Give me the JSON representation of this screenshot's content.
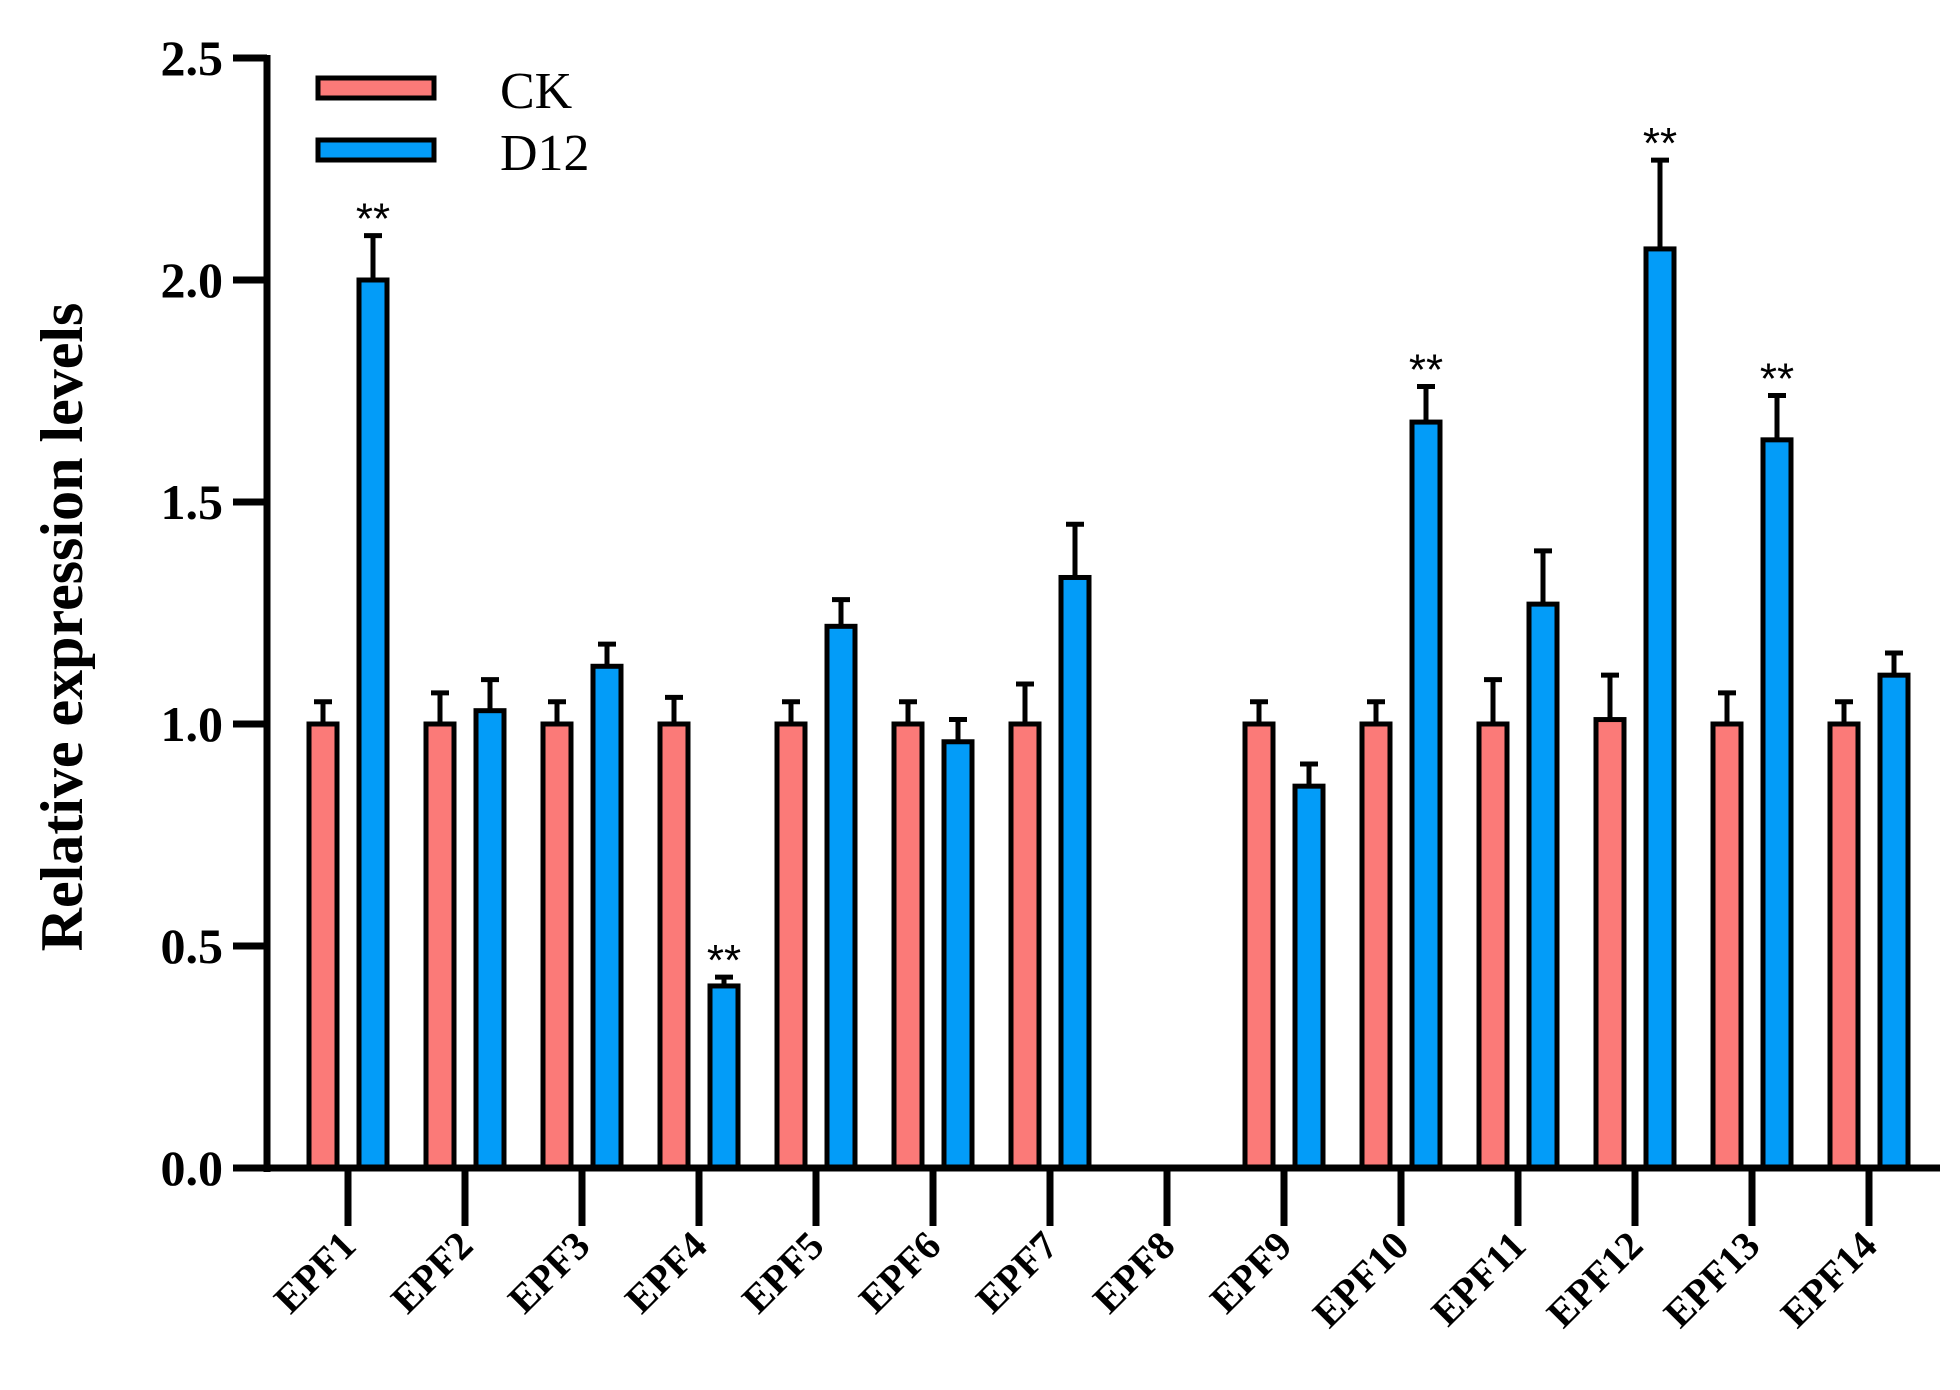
{
  "chart_data": {
    "type": "bar",
    "title": "",
    "xlabel": "",
    "ylabel": "Relative expression levels",
    "ylim": [
      0,
      2.5
    ],
    "yticks": [
      "0.0",
      "0.5",
      "1.0",
      "1.5",
      "2.0",
      "2.5"
    ],
    "grid": false,
    "legend": "top-left",
    "categories": [
      "EPF1",
      "EPF2",
      "EPF3",
      "EPF4",
      "EPF5",
      "EPF6",
      "EPF7",
      "EPF8",
      "EPF9",
      "EPF10",
      "EPF11",
      "EPF12",
      "EPF13",
      "EPF14"
    ],
    "series": [
      {
        "name": "CK",
        "color": "#fb7a78",
        "values": [
          1.0,
          1.0,
          1.0,
          1.0,
          1.0,
          1.0,
          1.0,
          null,
          1.0,
          1.0,
          1.0,
          1.01,
          1.0,
          1.0
        ],
        "errors": [
          0.05,
          0.07,
          0.05,
          0.06,
          0.05,
          0.05,
          0.09,
          null,
          0.05,
          0.05,
          0.1,
          0.1,
          0.07,
          0.05
        ]
      },
      {
        "name": "D12",
        "color": "#039cf8",
        "values": [
          2.0,
          1.03,
          1.13,
          0.41,
          1.22,
          0.96,
          1.33,
          null,
          0.86,
          1.68,
          1.27,
          2.07,
          1.64,
          1.11
        ],
        "errors": [
          0.1,
          0.07,
          0.05,
          0.02,
          0.06,
          0.05,
          0.12,
          null,
          0.05,
          0.08,
          0.12,
          0.2,
          0.1,
          0.05
        ]
      }
    ],
    "annotations": [
      {
        "category": "EPF1",
        "series": "D12",
        "text": "**"
      },
      {
        "category": "EPF4",
        "series": "D12",
        "text": "**"
      },
      {
        "category": "EPF10",
        "series": "D12",
        "text": "**"
      },
      {
        "category": "EPF12",
        "series": "D12",
        "text": "**"
      },
      {
        "category": "EPF13",
        "series": "D12",
        "text": "**"
      }
    ]
  }
}
